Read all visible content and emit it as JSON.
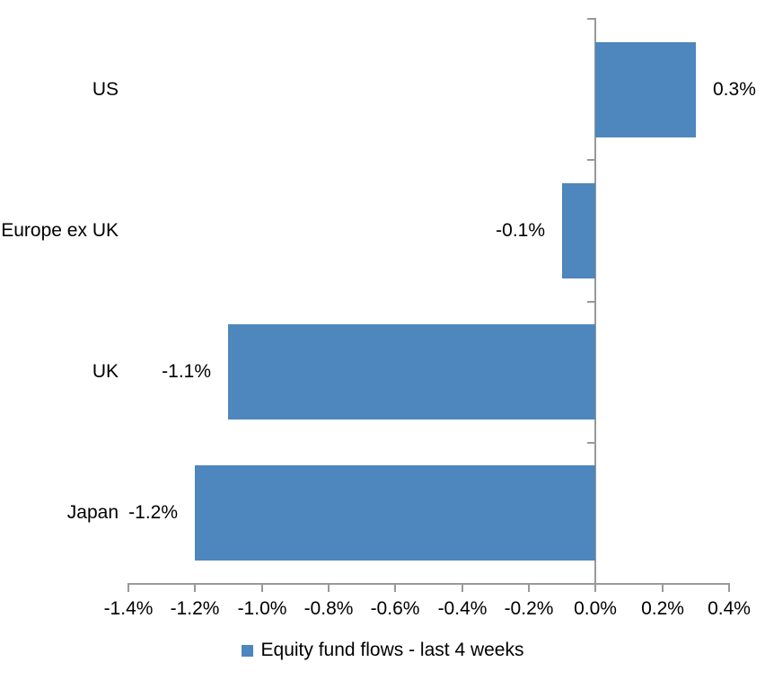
{
  "chart_data": {
    "type": "bar",
    "orientation": "horizontal",
    "title": "",
    "xlabel": "",
    "ylabel": "",
    "categories": [
      "US",
      "Europe ex UK",
      "UK",
      "Japan"
    ],
    "series": [
      {
        "name": "Equity fund flows - last 4 weeks",
        "values": [
          0.3,
          -0.1,
          -1.1,
          -1.2
        ],
        "data_labels": [
          "0.3%",
          "-0.1%",
          "-1.1%",
          "-1.2%"
        ]
      }
    ],
    "xlim": [
      -1.4,
      0.4
    ],
    "x_ticks": [
      {
        "value": -1.4,
        "label": "-1.4%"
      },
      {
        "value": -1.2,
        "label": "-1.2%"
      },
      {
        "value": -1.0,
        "label": "-1.0%"
      },
      {
        "value": -0.8,
        "label": "-0.8%"
      },
      {
        "value": -0.6,
        "label": "-0.6%"
      },
      {
        "value": -0.4,
        "label": "-0.4%"
      },
      {
        "value": -0.2,
        "label": "-0.2%"
      },
      {
        "value": 0.0,
        "label": "0.0%"
      },
      {
        "value": 0.2,
        "label": "0.2%"
      },
      {
        "value": 0.4,
        "label": "0.4%"
      }
    ],
    "grid": false,
    "legend_position": "bottom",
    "colors": {
      "bar": "#4E86BE",
      "axis": "#999999",
      "text": "#000000",
      "background": "#FFFFFF"
    }
  }
}
